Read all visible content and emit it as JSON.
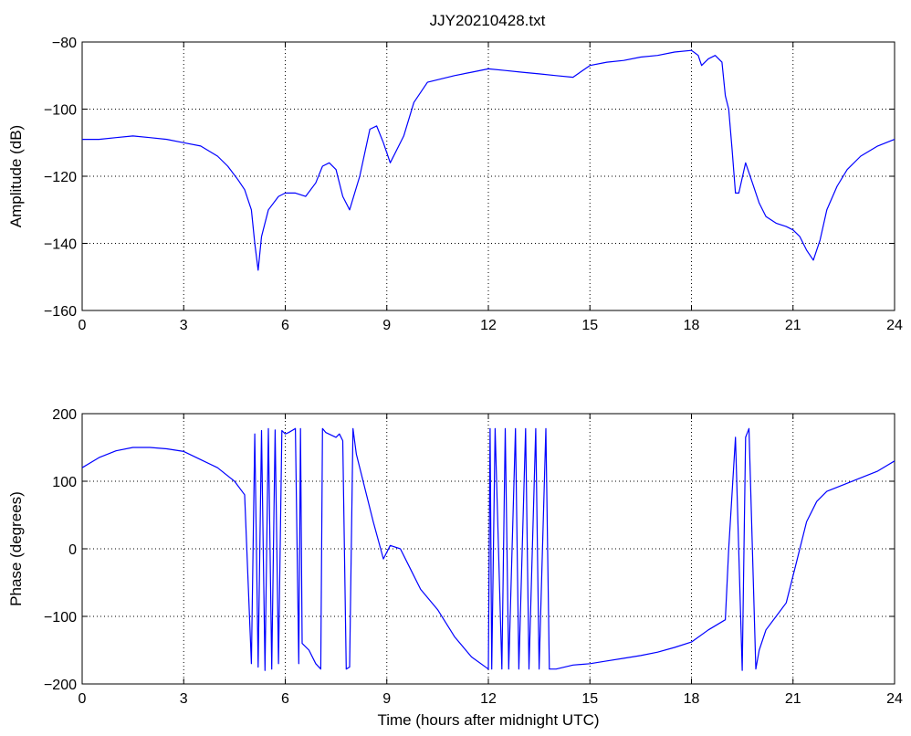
{
  "figure": {
    "title": "JJY20210428.txt",
    "line_color": "#0000ff",
    "grid": "dotted"
  },
  "chart_data": [
    {
      "type": "line",
      "ylabel": "Amplitude (dB)",
      "xlabel": "",
      "xlim": [
        0,
        24
      ],
      "ylim": [
        -160,
        -80
      ],
      "xticks": [
        "0",
        "3",
        "6",
        "9",
        "12",
        "15",
        "18",
        "21",
        "24"
      ],
      "yticks": [
        "−80",
        "−100",
        "−120",
        "−140",
        "−160"
      ],
      "grid": true,
      "series": [
        {
          "x": [
            0,
            0.5,
            1,
            1.5,
            2,
            2.5,
            3,
            3.5,
            4,
            4.3,
            4.6,
            4.8,
            5.0,
            5.1,
            5.2,
            5.3,
            5.5,
            5.8,
            6.0,
            6.3,
            6.6,
            6.9,
            7.1,
            7.3,
            7.5,
            7.7,
            7.9,
            8.2,
            8.5,
            8.7,
            8.9,
            9.1,
            9.3,
            9.5,
            9.8,
            10.2,
            10.6,
            11,
            11.5,
            12,
            12.5,
            13,
            13.5,
            14,
            14.5,
            15,
            15.5,
            16,
            16.5,
            17,
            17.5,
            18,
            18.2,
            18.3,
            18.5,
            18.7,
            18.9,
            19.0,
            19.1,
            19.2,
            19.3,
            19.4,
            19.6,
            19.8,
            20.0,
            20.2,
            20.5,
            20.8,
            21.0,
            21.2,
            21.4,
            21.6,
            21.8,
            22.0,
            22.3,
            22.6,
            23.0,
            23.5,
            24
          ],
          "y": [
            -109,
            -109,
            -108.5,
            -108,
            -108.5,
            -109,
            -110,
            -111,
            -114,
            -117,
            -121,
            -124,
            -130,
            -140,
            -148,
            -138,
            -130,
            -126,
            -125,
            -125,
            -126,
            -122,
            -117,
            -116,
            -118,
            -126,
            -130,
            -120,
            -106,
            -105,
            -110,
            -116,
            -112,
            -108,
            -98,
            -92,
            -91,
            -90,
            -89,
            -88,
            -88.5,
            -89,
            -89.5,
            -90,
            -90.5,
            -87,
            -86,
            -85.5,
            -84.5,
            -84,
            -83,
            -82.5,
            -84,
            -87,
            -85,
            -84,
            -86,
            -96,
            -100,
            -112,
            -125,
            -125,
            -116,
            -122,
            -128,
            -132,
            -134,
            -135,
            -136,
            -138,
            -142,
            -145,
            -139,
            -130,
            -123,
            -118,
            -114,
            -111,
            -109
          ]
        }
      ]
    },
    {
      "type": "line",
      "ylabel": "Phase (degrees)",
      "xlabel": "Time (hours after midnight UTC)",
      "xlim": [
        0,
        24
      ],
      "ylim": [
        -200,
        200
      ],
      "xticks": [
        "0",
        "3",
        "6",
        "9",
        "12",
        "15",
        "18",
        "21",
        "24"
      ],
      "yticks": [
        "200",
        "100",
        "0",
        "−100",
        "−200"
      ],
      "grid": true,
      "series": [
        {
          "x": [
            0,
            0.5,
            1,
            1.5,
            2,
            2.5,
            3,
            3.5,
            4,
            4.5,
            4.8,
            5.0,
            5.1,
            5.2,
            5.3,
            5.4,
            5.5,
            5.6,
            5.7,
            5.8,
            5.9,
            6.0,
            6.1,
            6.2,
            6.3,
            6.4,
            6.45,
            6.5,
            6.7,
            6.9,
            7.05,
            7.1,
            7.2,
            7.5,
            7.6,
            7.7,
            7.8,
            7.9,
            8.0,
            8.1,
            8.3,
            8.6,
            8.9,
            9.1,
            9.4,
            9.7,
            10.0,
            10.5,
            11.0,
            11.5,
            12.0,
            12.05,
            12.1,
            12.2,
            12.4,
            12.5,
            12.6,
            12.8,
            12.9,
            13.1,
            13.2,
            13.4,
            13.5,
            13.7,
            13.8,
            14,
            14.5,
            15,
            15.5,
            16,
            16.5,
            17,
            17.5,
            18,
            18.5,
            19,
            19.1,
            19.3,
            19.5,
            19.6,
            19.7,
            19.9,
            20.0,
            20.2,
            20.5,
            20.8,
            21.1,
            21.4,
            21.7,
            22.0,
            22.5,
            23.0,
            23.5,
            24
          ],
          "y": [
            120,
            135,
            145,
            150,
            150,
            148,
            144,
            132,
            120,
            100,
            80,
            -170,
            170,
            -175,
            175,
            -180,
            178,
            -178,
            176,
            -170,
            175,
            170,
            172,
            175,
            178,
            -170,
            178,
            -140,
            -150,
            -170,
            -178,
            178,
            172,
            165,
            170,
            160,
            -178,
            -175,
            178,
            140,
            100,
            40,
            -15,
            5,
            0,
            -30,
            -60,
            -90,
            -130,
            -160,
            -178,
            178,
            -178,
            178,
            -178,
            178,
            -178,
            178,
            -178,
            178,
            -178,
            178,
            -178,
            178,
            -178,
            -178,
            -172,
            -170,
            -166,
            -162,
            -158,
            -153,
            -146,
            -138,
            -120,
            -105,
            0,
            165,
            -180,
            165,
            178,
            -178,
            -150,
            -120,
            -100,
            -80,
            -20,
            40,
            70,
            85,
            95,
            105,
            115,
            130
          ]
        }
      ]
    }
  ]
}
